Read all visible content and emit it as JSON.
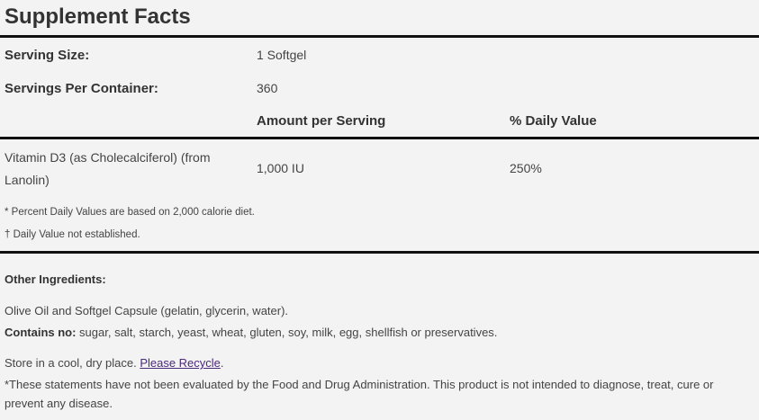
{
  "title": "Supplement Facts",
  "serving_size": {
    "label": "Serving Size:",
    "value": "1 Softgel"
  },
  "servings_per_container": {
    "label": "Servings Per Container:",
    "value": "360"
  },
  "headers": {
    "amount": "Amount per Serving",
    "dv": "% Daily Value"
  },
  "nutrients": [
    {
      "name_line1": "Vitamin D3 (as Cholecalciferol) (from",
      "name_line2": "Lanolin)",
      "amount": "1,000 IU",
      "dv": "250%"
    }
  ],
  "footnotes": [
    "* Percent Daily Values are based on 2,000 calorie diet.",
    "† Daily Value not established."
  ],
  "other_ingredients": {
    "label": "Other Ingredients:",
    "text": "Olive Oil and Softgel Capsule (gelatin, glycerin, water)."
  },
  "contains_no": {
    "label": "Contains no:",
    "text": " sugar, salt, starch, yeast, wheat, gluten, soy, milk, egg, shellfish or preservatives."
  },
  "storage": {
    "text": "Store in a cool, dry place. ",
    "link": "Please Recycle",
    "after": "."
  },
  "disclaimer_line1": "*These statements have not been evaluated by the Food and Drug Administration. This product is not intended to diagnose, treat, cure or",
  "disclaimer_line2": "prevent any disease."
}
